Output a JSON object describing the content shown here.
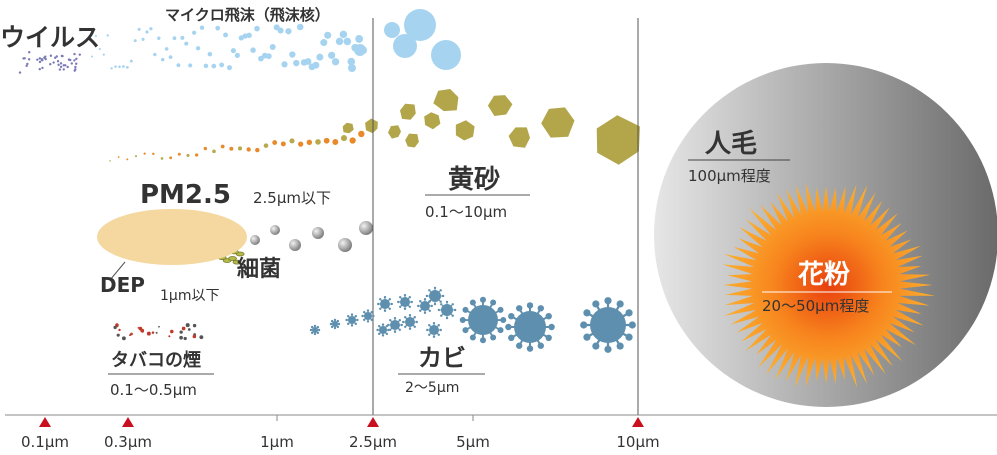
{
  "labels": {
    "virus": "ウイルス",
    "micro_droplet": "マイクロ飛沫（飛沫核）",
    "pm25": "PM2.5",
    "pm25_size": "2.5μm以下",
    "dep": "DEP",
    "dep_size": "1μm以下",
    "bacteria": "細菌",
    "smoke": "タバコの煙",
    "smoke_size": "0.1〜0.5μm",
    "yellow_sand": "黄砂",
    "yellow_sand_size": "0.1〜10μm",
    "mold": "カビ",
    "mold_size": "2〜5μm",
    "hair": "人毛",
    "hair_size": "100μm程度",
    "pollen": "花粉",
    "pollen_size": "20〜50μm程度"
  },
  "axis": {
    "ticks": [
      "0.1μm",
      "0.3μm",
      "1μm",
      "2.5μm",
      "5μm",
      "10μm"
    ]
  }
}
